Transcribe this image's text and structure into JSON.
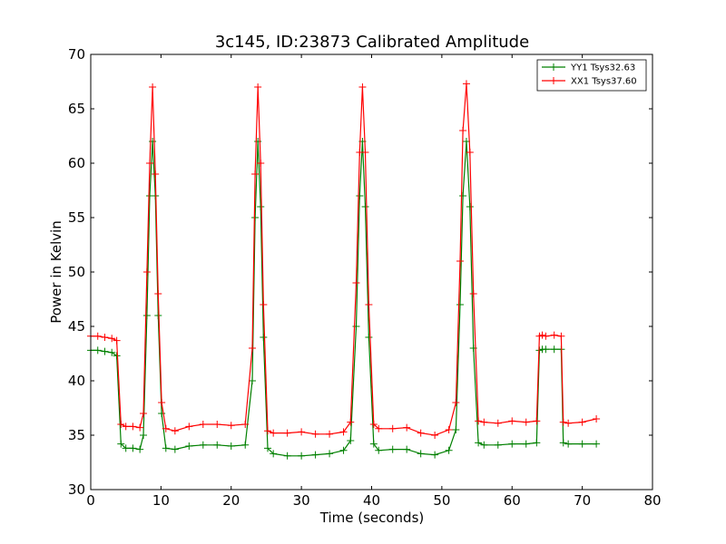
{
  "chart_data": {
    "type": "line",
    "title": "3c145, ID:23873 Calibrated Amplitude",
    "xlabel": "Time (seconds)",
    "ylabel": "Power in Kelvin",
    "xlim": [
      0,
      80
    ],
    "ylim": [
      30,
      70
    ],
    "xticks": [
      0,
      10,
      20,
      30,
      40,
      50,
      60,
      70,
      80
    ],
    "yticks": [
      30,
      35,
      40,
      45,
      50,
      55,
      60,
      65,
      70
    ],
    "grid": false,
    "legend_position": "top-right",
    "series": [
      {
        "name": "YY1 Tsys32.63",
        "color": "#008000",
        "marker": "plus",
        "x": [
          0,
          1,
          2,
          3,
          3.7,
          4.3,
          5,
          6,
          7,
          7.5,
          8,
          8.4,
          8.8,
          9.2,
          9.6,
          10.1,
          10.7,
          12,
          14,
          16,
          18,
          20,
          22,
          23,
          23.4,
          23.8,
          24.2,
          24.6,
          25.2,
          26,
          28,
          30,
          32,
          34,
          36,
          37,
          37.8,
          38.3,
          38.7,
          39.1,
          39.6,
          40.3,
          41,
          43,
          45,
          47,
          49,
          51,
          52,
          52.6,
          53,
          53.5,
          54,
          54.5,
          55.2,
          56,
          58,
          60,
          62,
          63.5,
          63.9,
          64.3,
          64.8,
          66,
          67,
          67.3,
          68,
          70,
          72
        ],
        "y": [
          42.8,
          42.8,
          42.7,
          42.6,
          42.3,
          34.2,
          33.8,
          33.8,
          33.7,
          35,
          46,
          57,
          62,
          57,
          46,
          37,
          33.8,
          33.7,
          34,
          34.1,
          34.1,
          34,
          34.1,
          40,
          55,
          62,
          56,
          44,
          33.8,
          33.3,
          33.1,
          33.1,
          33.2,
          33.3,
          33.6,
          34.5,
          45,
          57,
          62,
          56,
          44,
          34.2,
          33.6,
          33.7,
          33.7,
          33.3,
          33.2,
          33.6,
          35.5,
          47,
          57,
          62,
          56,
          43,
          34.3,
          34.1,
          34.1,
          34.2,
          34.2,
          34.3,
          42.8,
          42.9,
          42.9,
          42.9,
          42.9,
          34.3,
          34.2,
          34.2,
          34.2
        ]
      },
      {
        "name": "XX1 Tsys37.60",
        "color": "#ff0000",
        "marker": "plus",
        "x": [
          0,
          1,
          2,
          3,
          3.7,
          4.3,
          5,
          6,
          7,
          7.5,
          8,
          8.4,
          8.8,
          9.2,
          9.6,
          10.1,
          10.7,
          12,
          14,
          16,
          18,
          20,
          22,
          23,
          23.4,
          23.8,
          24.2,
          24.6,
          25.2,
          26,
          28,
          30,
          32,
          34,
          36,
          37,
          37.8,
          38.3,
          38.7,
          39.1,
          39.6,
          40.3,
          41,
          43,
          45,
          47,
          49,
          51,
          52,
          52.6,
          53,
          53.5,
          54,
          54.5,
          55.2,
          56,
          58,
          60,
          62,
          63.5,
          63.9,
          64.3,
          64.8,
          66,
          67,
          67.3,
          68,
          70,
          72
        ],
        "y": [
          44.1,
          44.1,
          44,
          43.9,
          43.7,
          36,
          35.8,
          35.8,
          35.7,
          37,
          50,
          60,
          67,
          59,
          48,
          38,
          35.6,
          35.4,
          35.8,
          36,
          36,
          35.9,
          36,
          43,
          59,
          67,
          60,
          47,
          35.4,
          35.2,
          35.2,
          35.3,
          35.1,
          35.1,
          35.3,
          36.2,
          49,
          61,
          67,
          61,
          47,
          36,
          35.6,
          35.6,
          35.7,
          35.2,
          35,
          35.5,
          38,
          51,
          63,
          67.3,
          61,
          48,
          36.3,
          36.2,
          36.1,
          36.3,
          36.2,
          36.3,
          44.1,
          44.2,
          44.1,
          44.2,
          44.1,
          36.2,
          36.1,
          36.2,
          36.5
        ]
      }
    ]
  }
}
